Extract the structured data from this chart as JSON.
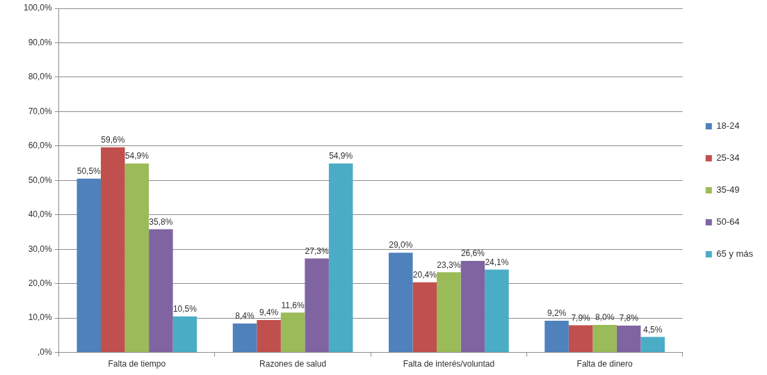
{
  "chart_data": {
    "type": "bar",
    "categories": [
      "Falta de tiempo",
      "Razones de salud",
      "Falta de interés/voluntad",
      "Falta de dinero"
    ],
    "series": [
      {
        "name": "18-24",
        "color": "#4f81bd",
        "values": [
          50.5,
          8.4,
          29.0,
          9.2
        ],
        "value_labels": [
          "50,5%",
          "8,4%",
          "29,0%",
          "9,2%"
        ]
      },
      {
        "name": "25-34",
        "color": "#c0504d",
        "values": [
          59.6,
          9.4,
          20.4,
          7.9
        ],
        "value_labels": [
          "59,6%",
          "9,4%",
          "20,4%",
          "7,9%"
        ]
      },
      {
        "name": "35-49",
        "color": "#9bbb59",
        "values": [
          54.9,
          11.6,
          23.3,
          8.0
        ],
        "value_labels": [
          "54,9%",
          "11,6%",
          "23,3%",
          "8,0%"
        ]
      },
      {
        "name": "50-64",
        "color": "#8064a2",
        "values": [
          35.8,
          27.3,
          26.6,
          7.8
        ],
        "value_labels": [
          "35,8%",
          "27,3%",
          "26,6%",
          "7,8%"
        ]
      },
      {
        "name": "65 y más",
        "color": "#4bacc6",
        "values": [
          10.5,
          54.9,
          24.1,
          4.5
        ],
        "value_labels": [
          "10,5%",
          "54,9%",
          "24,1%",
          "4,5%"
        ]
      }
    ],
    "ylim": [
      0,
      100
    ],
    "yticks": [
      {
        "value": 0,
        "label": ",0%"
      },
      {
        "value": 10,
        "label": "10,0%"
      },
      {
        "value": 20,
        "label": "20,0%"
      },
      {
        "value": 30,
        "label": "30,0%"
      },
      {
        "value": 40,
        "label": "40,0%"
      },
      {
        "value": 50,
        "label": "50,0%"
      },
      {
        "value": 60,
        "label": "60,0%"
      },
      {
        "value": 70,
        "label": "70,0%"
      },
      {
        "value": 80,
        "label": "80,0%"
      },
      {
        "value": 90,
        "label": "90,0%"
      },
      {
        "value": 100,
        "label": "100,0%"
      }
    ],
    "grid": "y",
    "legend": "right"
  }
}
